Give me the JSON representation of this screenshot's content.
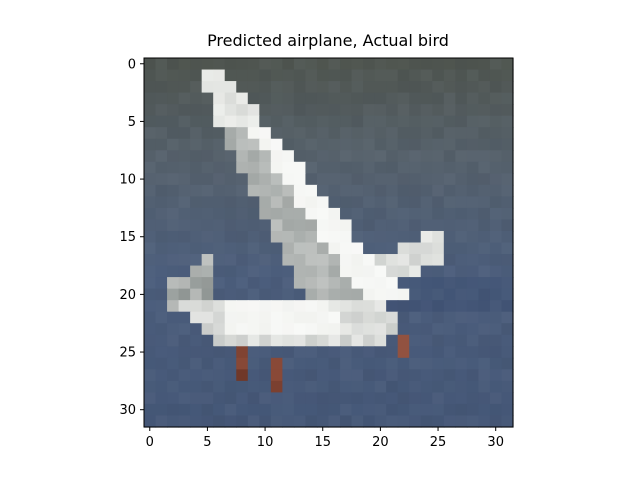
{
  "title": "Predicted airplane, Actual bird",
  "image": {
    "description_name": "cifar-bird-seagull",
    "grid_size": [
      32,
      32
    ],
    "background_colors": {
      "sky_top": "#4f554f",
      "sky_mid": "#56616b",
      "water": "#4c5e7c",
      "water_dark": "#3c4f72",
      "bird_white": "#f2f3f0",
      "bird_gray": "#bfc2c0",
      "bird_shadow": "#8f9593",
      "legs": "#8a4a38"
    }
  },
  "axes": {
    "x_ticks": [
      "0",
      "5",
      "10",
      "15",
      "20",
      "25",
      "30"
    ],
    "y_ticks": [
      "0",
      "5",
      "10",
      "15",
      "20",
      "25",
      "30"
    ],
    "x_range": [
      -0.5,
      31.5
    ],
    "y_range": [
      -0.5,
      31.5
    ]
  }
}
